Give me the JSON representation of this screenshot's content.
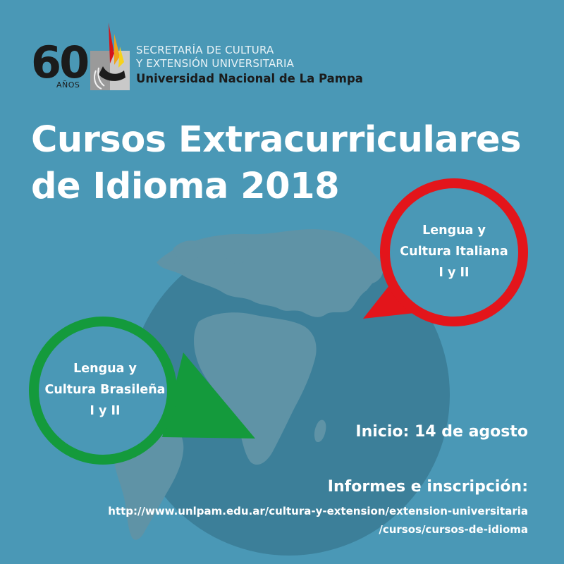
{
  "header": {
    "anniversary_number": "60",
    "anniversary_word": "AÑOS",
    "secretaria_line1": "SECRETARÍA DE CULTURA",
    "secretaria_line2": "Y EXTENSIÓN UNIVERSITARIA",
    "university": "Universidad Nacional de La Pampa"
  },
  "title": {
    "line1": "Cursos Extracurriculares",
    "line2": "de Idioma 2018"
  },
  "pins": {
    "italian": {
      "line1": "Lengua y",
      "line2": "Cultura Italiana",
      "line3": "I y II",
      "color": "#e3151b"
    },
    "brazilian": {
      "line1": "Lengua y",
      "line2": "Cultura Brasileña",
      "line3": "I y II",
      "color": "#149a3c"
    }
  },
  "info": {
    "start": "Inicio: 14 de agosto",
    "informes_label": "Informes e inscripción:",
    "url_line1": "http://www.unlpam.edu.ar/cultura-y-extension/extension-universitaria",
    "url_line2": "/cursos/cursos-de-idioma"
  },
  "colors": {
    "background": "#4a98b6",
    "globe": "#3c7f99",
    "globe_land": "#5f93a6",
    "text_light": "#ffffff",
    "text_dark": "#1b1b1b"
  }
}
